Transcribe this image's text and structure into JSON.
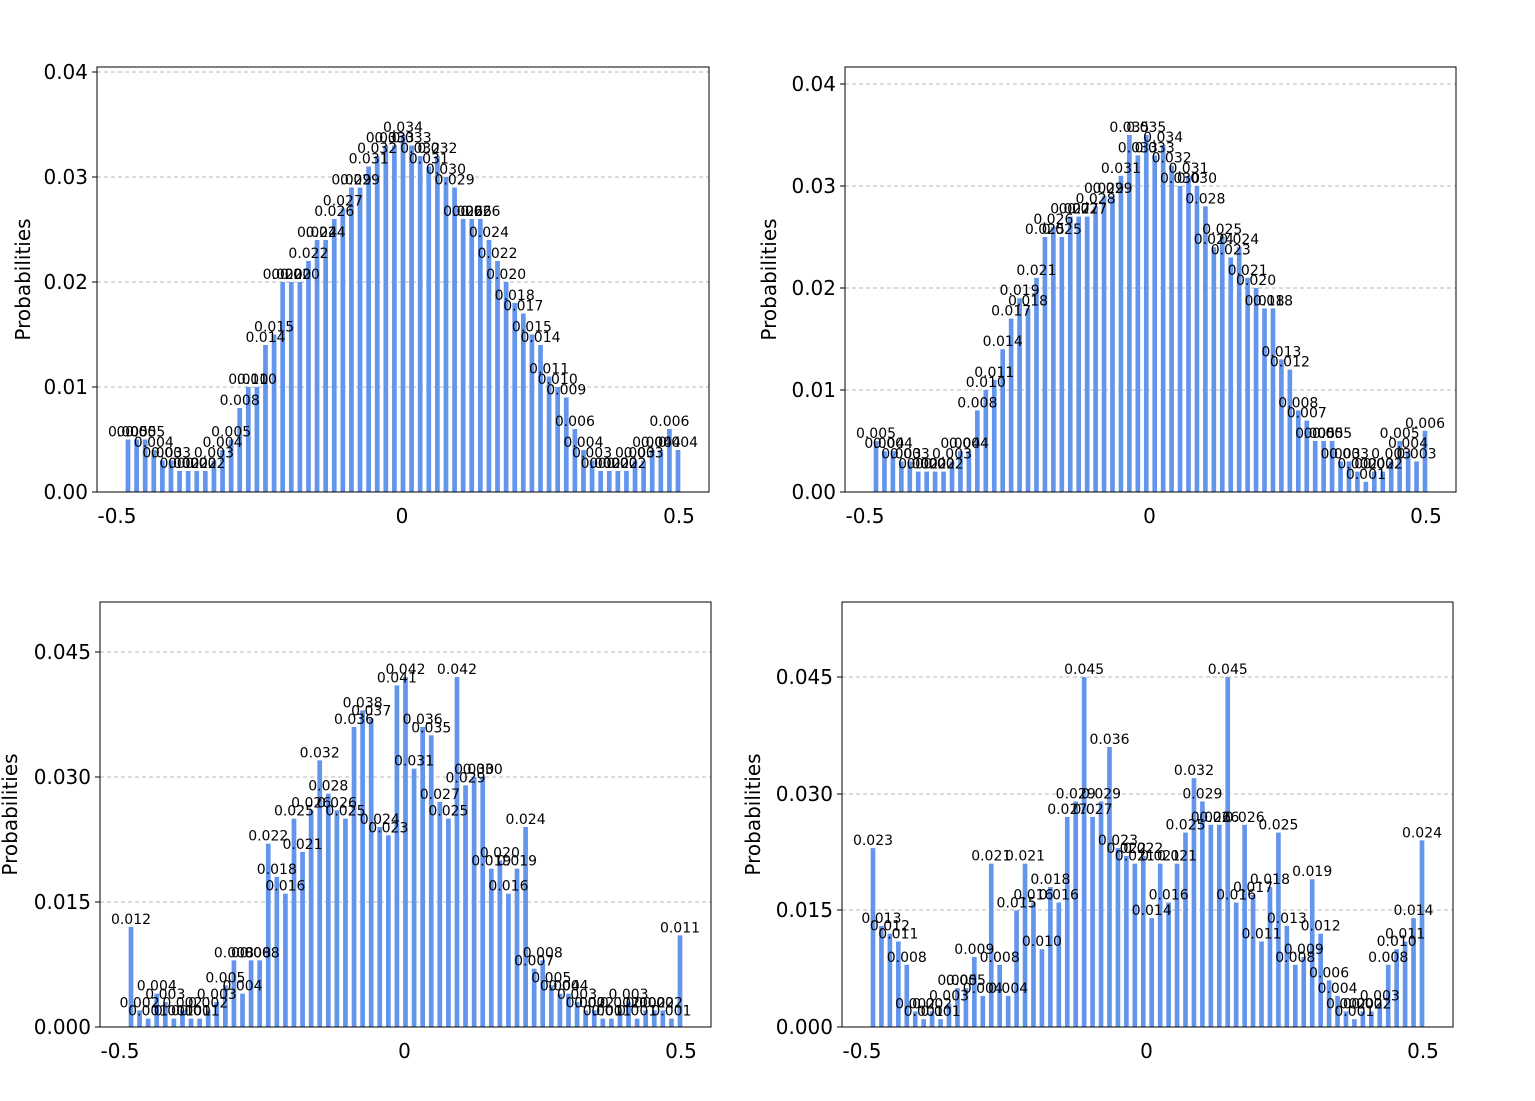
{
  "chart_data": [
    {
      "type": "bar",
      "ylabel": "Probabilities",
      "xlim": [
        -0.5,
        0.5
      ],
      "ylim": [
        0,
        0.04
      ],
      "yticks": [
        "0.00",
        "0.01",
        "0.02",
        "0.03",
        "0.04"
      ],
      "xticks": [
        "-0.5",
        "0",
        "0.5"
      ],
      "grid": "horizontal dashed",
      "bar_color": "#6495ED",
      "values": [
        0.005,
        0.005,
        0.005,
        0.004,
        0.003,
        0.003,
        0.002,
        0.002,
        0.002,
        0.002,
        0.003,
        0.004,
        0.005,
        0.008,
        0.01,
        0.01,
        0.014,
        0.015,
        0.02,
        0.02,
        0.02,
        0.022,
        0.024,
        0.024,
        0.026,
        0.027,
        0.029,
        0.029,
        0.031,
        0.032,
        0.033,
        0.033,
        0.034,
        0.033,
        0.032,
        0.031,
        0.032,
        0.03,
        0.029,
        0.026,
        0.026,
        0.026,
        0.024,
        0.022,
        0.02,
        0.018,
        0.017,
        0.015,
        0.014,
        0.011,
        0.01,
        0.009,
        0.006,
        0.004,
        0.003,
        0.002,
        0.002,
        0.002,
        0.002,
        0.003,
        0.003,
        0.004,
        0.004,
        0.006,
        0.004
      ],
      "labels": [
        "0.005",
        "0.005",
        "0.005",
        "0.004",
        "0.003",
        "0.003",
        "0.002",
        "0.002",
        "0.002",
        "0.002",
        "0.003",
        "0.004",
        "0.005",
        "0.008",
        "0.010",
        "0.010",
        "0.014",
        "0.015",
        "0.020",
        "0.020",
        "0.020",
        "0.022",
        "0.024",
        "0.024",
        "0.026",
        "0.027",
        "0.029",
        "0.029",
        "0.031",
        "0.032",
        "0.033",
        "0.033",
        "0.034",
        "0.033",
        "0.032",
        "0.031",
        "0.032",
        "0.030",
        "0.029",
        "0.026",
        "0.026",
        "0.026",
        "0.024",
        "0.022",
        "0.020",
        "0.018",
        "0.017",
        "0.015",
        "0.014",
        "0.011",
        "0.010",
        "0.009",
        "0.006",
        "0.004",
        "0.003",
        "0.002",
        "0.002",
        "0.002",
        "0.002",
        "0.003",
        "0.003",
        "0.004",
        "0.004",
        "0.006",
        "0.004"
      ]
    },
    {
      "type": "bar",
      "ylabel": "Probabilities",
      "xlim": [
        -0.5,
        0.5
      ],
      "ylim": [
        0,
        0.04
      ],
      "yticks": [
        "0.00",
        "0.01",
        "0.02",
        "0.03",
        "0.04"
      ],
      "xticks": [
        "-0.5",
        "0",
        "0.5"
      ],
      "grid": "horizontal dashed",
      "bar_color": "#6495ED",
      "values": [
        0.005,
        0.004,
        0.004,
        0.003,
        0.003,
        0.002,
        0.002,
        0.002,
        0.002,
        0.003,
        0.004,
        0.004,
        0.008,
        0.01,
        0.011,
        0.014,
        0.017,
        0.019,
        0.018,
        0.021,
        0.025,
        0.026,
        0.025,
        0.027,
        0.027,
        0.027,
        0.028,
        0.029,
        0.029,
        0.031,
        0.035,
        0.033,
        0.035,
        0.033,
        0.034,
        0.032,
        0.03,
        0.031,
        0.03,
        0.028,
        0.024,
        0.025,
        0.023,
        0.024,
        0.021,
        0.02,
        0.018,
        0.018,
        0.013,
        0.012,
        0.008,
        0.007,
        0.005,
        0.005,
        0.005,
        0.003,
        0.003,
        0.002,
        0.001,
        0.002,
        0.002,
        0.003,
        0.005,
        0.004,
        0.003,
        0.006
      ],
      "labels": [
        "0.005",
        "0.004",
        "0.004",
        "0.003",
        "0.003",
        "0.002",
        "0.002",
        "0.002",
        "0.002",
        "0.003",
        "0.004",
        "0.004",
        "0.008",
        "0.010",
        "0.011",
        "0.014",
        "0.017",
        "0.019",
        "0.018",
        "0.021",
        "0.025",
        "0.026",
        "0.025",
        "0.027",
        "0.027",
        "0.027",
        "0.028",
        "0.029",
        "0.029",
        "0.031",
        "0.035",
        "0.033",
        "0.035",
        "0.033",
        "0.034",
        "0.032",
        "0.030",
        "0.031",
        "0.030",
        "0.028",
        "0.024",
        "0.025",
        "0.023",
        "0.024",
        "0.021",
        "0.020",
        "0.018",
        "0.018",
        "0.013",
        "0.012",
        "0.008",
        "0.007",
        "0.005",
        "0.005",
        "0.005",
        "0.003",
        "0.003",
        "0.002",
        "0.001",
        "0.002",
        "0.002",
        "0.003",
        "0.005",
        "0.004",
        "0.003",
        "0.006"
      ]
    },
    {
      "type": "bar",
      "ylabel": "Probabilities",
      "xlim": [
        -0.5,
        0.5
      ],
      "ylim": [
        0,
        0.045
      ],
      "yticks": [
        "0.000",
        "0.015",
        "0.030",
        "0.045"
      ],
      "xticks": [
        "-0.5",
        "0",
        "0.5"
      ],
      "grid": "horizontal dashed",
      "bar_color": "#6495ED",
      "values": [
        0.012,
        0.002,
        0.001,
        0.004,
        0.003,
        0.001,
        0.002,
        0.001,
        0.001,
        0.002,
        0.003,
        0.005,
        0.008,
        0.004,
        0.008,
        0.008,
        0.022,
        0.018,
        0.016,
        0.025,
        0.021,
        0.026,
        0.032,
        0.028,
        0.026,
        0.025,
        0.036,
        0.038,
        0.037,
        0.024,
        0.023,
        0.041,
        0.042,
        0.031,
        0.036,
        0.035,
        0.027,
        0.025,
        0.042,
        0.029,
        0.03,
        0.03,
        0.019,
        0.02,
        0.016,
        0.019,
        0.024,
        0.007,
        0.008,
        0.005,
        0.004,
        0.004,
        0.003,
        0.002,
        0.002,
        0.001,
        0.001,
        0.002,
        0.003,
        0.001,
        0.002,
        0.002,
        0.002,
        0.001,
        0.011
      ],
      "labels": [
        "0.012",
        "0.002",
        "0.001",
        "0.004",
        "0.003",
        "0.001",
        "0.002",
        "0.001",
        "0.001",
        "0.002",
        "0.003",
        "0.005",
        "0.008",
        "0.004",
        "0.008",
        "0.008",
        "0.022",
        "0.018",
        "0.016",
        "0.025",
        "0.021",
        "0.026",
        "0.032",
        "0.028",
        "0.026",
        "0.025",
        "0.036",
        "0.038",
        "0.037",
        "0.024",
        "0.023",
        "0.041",
        "0.042",
        "0.031",
        "0.036",
        "0.035",
        "0.027",
        "0.025",
        "0.042",
        "0.029",
        "0.030",
        "0.030",
        "0.019",
        "0.020",
        "0.016",
        "0.019",
        "0.024",
        "0.007",
        "0.008",
        "0.005",
        "0.004",
        "0.004",
        "0.003",
        "0.002",
        "0.002",
        "0.001",
        "0.001",
        "0.002",
        "0.003",
        "0.001",
        "0.002",
        "0.002",
        "0.002",
        "0.001",
        "0.011"
      ]
    },
    {
      "type": "bar",
      "ylabel": "Probabilities",
      "xlim": [
        -0.5,
        0.5
      ],
      "ylim": [
        0,
        0.045
      ],
      "yticks": [
        "0.000",
        "0.015",
        "0.030",
        "0.045"
      ],
      "xticks": [
        "-0.5",
        "0",
        "0.5"
      ],
      "grid": "horizontal dashed",
      "bar_color": "#6495ED",
      "values": [
        0.023,
        0.013,
        0.012,
        0.011,
        0.008,
        0.002,
        0.001,
        0.002,
        0.001,
        0.003,
        0.005,
        0.005,
        0.009,
        0.004,
        0.021,
        0.008,
        0.004,
        0.015,
        0.021,
        0.016,
        0.01,
        0.018,
        0.016,
        0.027,
        0.029,
        0.045,
        0.027,
        0.029,
        0.036,
        0.023,
        0.022,
        0.021,
        0.022,
        0.014,
        0.021,
        0.016,
        0.021,
        0.025,
        0.032,
        0.029,
        0.026,
        0.026,
        0.045,
        0.016,
        0.026,
        0.017,
        0.011,
        0.018,
        0.025,
        0.013,
        0.008,
        0.009,
        0.019,
        0.012,
        0.006,
        0.004,
        0.002,
        0.001,
        0.002,
        0.002,
        0.003,
        0.008,
        0.01,
        0.011,
        0.014,
        0.024
      ],
      "labels": [
        "0.023",
        "0.013",
        "0.012",
        "0.011",
        "0.008",
        "0.002",
        "0.001",
        "0.002",
        "0.001",
        "0.003",
        "0.005",
        "0.005",
        "0.009",
        "0.004",
        "0.021",
        "0.008",
        "0.004",
        "0.015",
        "0.021",
        "0.016",
        "0.010",
        "0.018",
        "0.016",
        "0.027",
        "0.029",
        "0.045",
        "0.027",
        "0.029",
        "0.036",
        "0.023",
        "0.022",
        "0.021",
        "0.022",
        "0.014",
        "0.021",
        "0.016",
        "0.021",
        "0.025",
        "0.032",
        "0.029",
        "0.026",
        "0.026",
        "0.045",
        "0.016",
        "0.026",
        "0.017",
        "0.011",
        "0.018",
        "0.025",
        "0.013",
        "0.008",
        "0.009",
        "0.019",
        "0.012",
        "0.006",
        "0.004",
        "0.002",
        "0.001",
        "0.002",
        "0.002",
        "0.003",
        "0.008",
        "0.010",
        "0.011",
        "0.014",
        "0.024"
      ]
    }
  ]
}
